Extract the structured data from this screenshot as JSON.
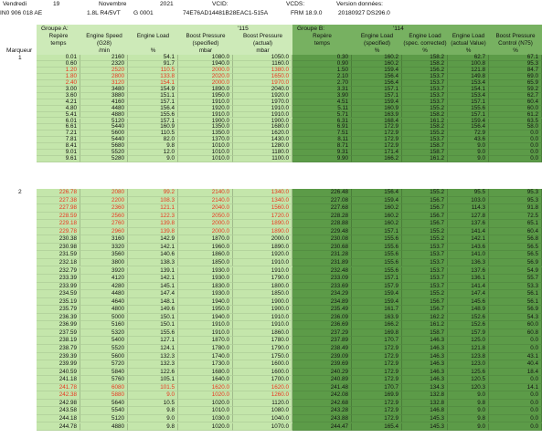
{
  "header": {
    "row1": [
      "Vendredi",
      "19",
      "Novembre",
      "2021",
      "VCID:",
      "VCDS:",
      "Version données:"
    ],
    "row2": [
      "IN0 906 018 AE",
      "1.8L R4/5VT",
      "G 0001",
      "74E76AD14481B28EAC1-515A",
      "FRM 18.9.0",
      "20180927 DS296.0"
    ]
  },
  "marker_label": "Marqueur",
  "markers": [
    "1",
    "2"
  ],
  "highlight_color": "#e8361f",
  "group_a": {
    "label": "Groupe A:",
    "code": "'115",
    "columns": [
      [
        "Repère",
        "temps"
      ],
      [
        "Engine Speed",
        "(G28)",
        "/min"
      ],
      [
        "Engine Load",
        "",
        "%"
      ],
      [
        "Boost Pressure",
        "(specified)",
        "mbar"
      ],
      [
        "Boost Pressure",
        "(actual)",
        "mbar"
      ]
    ],
    "highlighted_rows": [
      [
        2,
        3,
        4
      ],
      [
        0,
        1,
        2,
        3,
        4,
        5,
        25,
        26
      ]
    ],
    "blocks": [
      [
        [
          "0.01",
          "2160",
          "54.1",
          "1080.0",
          "1050.0"
        ],
        [
          "0.60",
          "2320",
          "91.7",
          "1940.0",
          "1160.0"
        ],
        [
          "1.20",
          "2520",
          "110.5",
          "2000.0",
          "1380.0"
        ],
        [
          "1.80",
          "2800",
          "133.8",
          "2020.0",
          "1650.0"
        ],
        [
          "2.40",
          "3120",
          "154.1",
          "2000.0",
          "1970.0"
        ],
        [
          "3.00",
          "3480",
          "154.9",
          "1890.0",
          "2040.0"
        ],
        [
          "3.60",
          "3880",
          "151.1",
          "1950.0",
          "1920.0"
        ],
        [
          "4.21",
          "4160",
          "157.1",
          "1910.0",
          "1970.0"
        ],
        [
          "4.80",
          "4480",
          "156.4",
          "1920.0",
          "1910.0"
        ],
        [
          "5.41",
          "4880",
          "155.6",
          "1910.0",
          "1910.0"
        ],
        [
          "6.01",
          "5120",
          "157.1",
          "1900.0",
          "1900.0"
        ],
        [
          "6.61",
          "5440",
          "160.9",
          "1350.0",
          "1680.0"
        ],
        [
          "7.21",
          "5600",
          "110.5",
          "1350.0",
          "1620.0"
        ],
        [
          "7.81",
          "5440",
          "82.0",
          "1370.0",
          "1430.0"
        ],
        [
          "8.41",
          "5680",
          "9.8",
          "1010.0",
          "1280.0"
        ],
        [
          "9.01",
          "5520",
          "12.0",
          "1010.0",
          "1180.0"
        ],
        [
          "9.61",
          "5280",
          "9.0",
          "1010.0",
          "1100.0"
        ]
      ],
      [
        [
          "226.78",
          "2080",
          "99.2",
          "2140.0",
          "1340.0"
        ],
        [
          "227.38",
          "2200",
          "108.3",
          "2140.0",
          "1340.0"
        ],
        [
          "227.98",
          "2360",
          "121.1",
          "2040.0",
          "1560.0"
        ],
        [
          "228.59",
          "2560",
          "122.3",
          "2050.0",
          "1720.0"
        ],
        [
          "229.18",
          "2760",
          "139.8",
          "2000.0",
          "1890.0"
        ],
        [
          "229.78",
          "2960",
          "139.8",
          "2000.0",
          "1890.0"
        ],
        [
          "230.38",
          "3160",
          "142.9",
          "1870.0",
          "2000.0"
        ],
        [
          "230.98",
          "3320",
          "142.1",
          "1960.0",
          "1890.0"
        ],
        [
          "231.59",
          "3560",
          "140.6",
          "1860.0",
          "1920.0"
        ],
        [
          "232.18",
          "3800",
          "138.3",
          "1850.0",
          "1910.0"
        ],
        [
          "232.79",
          "3920",
          "139.1",
          "1930.0",
          "1910.0"
        ],
        [
          "233.39",
          "4120",
          "142.1",
          "1930.0",
          "1790.0"
        ],
        [
          "233.99",
          "4280",
          "145.1",
          "1830.0",
          "1800.0"
        ],
        [
          "234.59",
          "4480",
          "147.4",
          "1930.0",
          "1850.0"
        ],
        [
          "235.19",
          "4640",
          "148.1",
          "1940.0",
          "1900.0"
        ],
        [
          "235.79",
          "4800",
          "149.6",
          "1950.0",
          "1900.0"
        ],
        [
          "236.39",
          "5000",
          "150.1",
          "1940.0",
          "1910.0"
        ],
        [
          "236.99",
          "5160",
          "150.1",
          "1910.0",
          "1910.0"
        ],
        [
          "237.59",
          "5320",
          "155.6",
          "1910.0",
          "1860.0"
        ],
        [
          "238.19",
          "5400",
          "127.1",
          "1870.0",
          "1780.0"
        ],
        [
          "238.79",
          "5520",
          "124.1",
          "1780.0",
          "1790.0"
        ],
        [
          "239.39",
          "5600",
          "132.3",
          "1740.0",
          "1750.0"
        ],
        [
          "239.99",
          "5720",
          "132.3",
          "1730.0",
          "1600.0"
        ],
        [
          "240.59",
          "5840",
          "122.6",
          "1680.0",
          "1600.0"
        ],
        [
          "241.18",
          "5760",
          "105.1",
          "1640.0",
          "1700.0"
        ],
        [
          "241.78",
          "6080",
          "101.5",
          "1620.0",
          "1620.0"
        ],
        [
          "242.38",
          "5880",
          "9.0",
          "1020.0",
          "1260.0"
        ],
        [
          "242.98",
          "5640",
          "10.5",
          "1020.0",
          "1120.0"
        ],
        [
          "243.58",
          "5540",
          "9.8",
          "1010.0",
          "1080.0"
        ],
        [
          "244.18",
          "5120",
          "9.0",
          "1030.0",
          "1040.0"
        ],
        [
          "244.78",
          "4880",
          "9.8",
          "1020.0",
          "1070.0"
        ]
      ]
    ]
  },
  "group_b": {
    "label": "Groupe B:",
    "code": "'114",
    "columns": [
      [
        "Repère",
        "temps"
      ],
      [
        "Engine Load",
        "(specified)",
        "%"
      ],
      [
        "Engine Load",
        "(spec. corrected)",
        "%"
      ],
      [
        "Engine Load",
        "(actual Value)",
        "%"
      ],
      [
        "Boost Pressure",
        "Control (N75)",
        "%"
      ]
    ],
    "blocks": [
      [
        [
          "0.30",
          "160.2",
          "158.2",
          "62.7",
          "67.1"
        ],
        [
          "0.90",
          "160.2",
          "158.2",
          "100.8",
          "95.3"
        ],
        [
          "1.50",
          "159.4",
          "156.2",
          "121.8",
          "84.7"
        ],
        [
          "2.10",
          "156.4",
          "153.7",
          "149.8",
          "69.0"
        ],
        [
          "2.70",
          "156.4",
          "153.7",
          "153.4",
          "65.9"
        ],
        [
          "3.31",
          "157.1",
          "153.7",
          "154.1",
          "59.2"
        ],
        [
          "3.90",
          "157.1",
          "153.7",
          "153.4",
          "62.7"
        ],
        [
          "4.51",
          "159.4",
          "153.7",
          "157.1",
          "60.4"
        ],
        [
          "5.11",
          "160.9",
          "155.2",
          "155.6",
          "60.0"
        ],
        [
          "5.71",
          "163.9",
          "158.2",
          "157.1",
          "61.2"
        ],
        [
          "6.31",
          "168.4",
          "161.2",
          "159.4",
          "63.5"
        ],
        [
          "6.91",
          "172.9",
          "158.2",
          "156.4",
          "58.0"
        ],
        [
          "7.51",
          "172.9",
          "155.2",
          "72.9",
          "0.0"
        ],
        [
          "8.11",
          "172.9",
          "153.7",
          "43.6",
          "0.0"
        ],
        [
          "8.71",
          "172.9",
          "158.7",
          "9.0",
          "0.0"
        ],
        [
          "9.31",
          "171.4",
          "158.7",
          "9.0",
          "0.0"
        ],
        [
          "9.90",
          "166.2",
          "161.2",
          "9.0",
          "0.0"
        ]
      ],
      [
        [
          "226.48",
          "156.4",
          "155.2",
          "95.5",
          "95.3"
        ],
        [
          "227.08",
          "159.4",
          "156.7",
          "103.0",
          "95.3"
        ],
        [
          "227.68",
          "160.2",
          "156.7",
          "114.3",
          "91.8"
        ],
        [
          "228.28",
          "160.2",
          "156.7",
          "127.8",
          "72.5"
        ],
        [
          "228.88",
          "160.2",
          "156.7",
          "137.6",
          "65.1"
        ],
        [
          "229.48",
          "157.1",
          "155.2",
          "141.4",
          "60.4"
        ],
        [
          "230.08",
          "155.6",
          "155.2",
          "142.1",
          "56.8"
        ],
        [
          "230.68",
          "155.6",
          "153.7",
          "143.6",
          "56.5"
        ],
        [
          "231.28",
          "155.6",
          "153.7",
          "141.0",
          "56.5"
        ],
        [
          "231.89",
          "155.6",
          "153.7",
          "136.3",
          "56.9"
        ],
        [
          "232.48",
          "155.6",
          "153.7",
          "137.6",
          "54.9"
        ],
        [
          "233.09",
          "157.1",
          "153.7",
          "136.1",
          "55.7"
        ],
        [
          "233.69",
          "157.9",
          "153.7",
          "141.4",
          "53.3"
        ],
        [
          "234.29",
          "159.4",
          "155.2",
          "147.4",
          "56.1"
        ],
        [
          "234.89",
          "159.4",
          "156.7",
          "145.6",
          "56.1"
        ],
        [
          "235.49",
          "161.7",
          "156.7",
          "148.9",
          "56.9"
        ],
        [
          "236.09",
          "163.9",
          "162.2",
          "152.6",
          "54.3"
        ],
        [
          "236.69",
          "166.2",
          "161.2",
          "152.6",
          "60.0"
        ],
        [
          "237.29",
          "169.8",
          "158.7",
          "157.9",
          "60.8"
        ],
        [
          "237.89",
          "170.7",
          "146.3",
          "125.0",
          "0.0"
        ],
        [
          "238.49",
          "172.9",
          "146.3",
          "121.8",
          "0.0"
        ],
        [
          "239.09",
          "172.9",
          "146.3",
          "123.8",
          "43.1"
        ],
        [
          "239.69",
          "172.9",
          "146.3",
          "123.0",
          "40.4"
        ],
        [
          "240.29",
          "172.9",
          "146.3",
          "125.6",
          "18.4"
        ],
        [
          "240.89",
          "172.9",
          "146.3",
          "120.5",
          "0.0"
        ],
        [
          "241.48",
          "170.7",
          "134.3",
          "120.3",
          "14.1"
        ],
        [
          "242.08",
          "169.9",
          "132.8",
          "9.0",
          "0.0"
        ],
        [
          "242.68",
          "172.9",
          "132.8",
          "9.8",
          "0.0"
        ],
        [
          "243.28",
          "172.9",
          "146.8",
          "9.0",
          "0.0"
        ],
        [
          "243.88",
          "172.9",
          "145.3",
          "9.8",
          "0.0"
        ],
        [
          "244.47",
          "165.4",
          "145.3",
          "9.0",
          "0.0"
        ]
      ]
    ]
  }
}
